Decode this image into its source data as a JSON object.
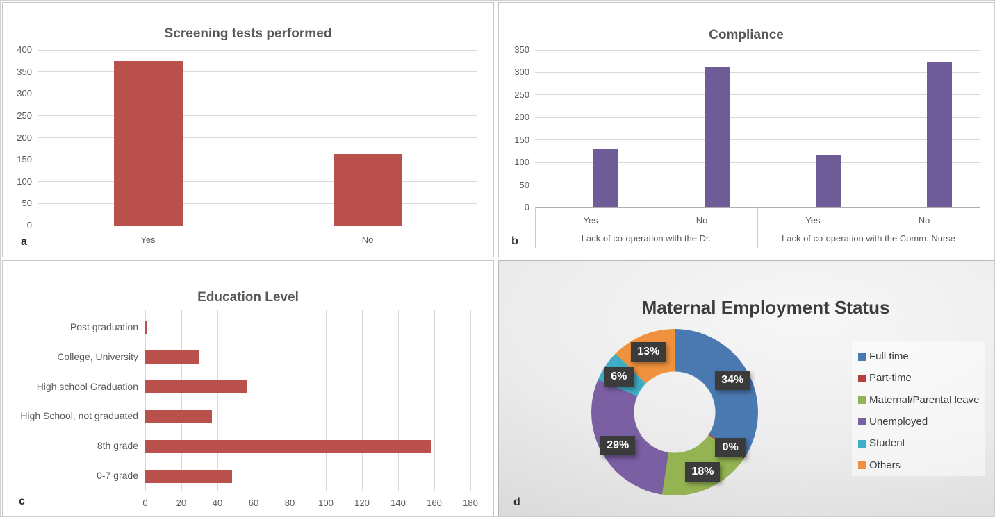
{
  "figure": {
    "description": "Four-panel statistics figure",
    "grid_color": "#d9d9d9",
    "axis_color": "#aeaeae",
    "text_color": "#595959"
  },
  "chart_data": [
    {
      "id": "screening",
      "type": "bar",
      "title": "Screening tests performed",
      "panel_label": "a",
      "categories": [
        "Yes",
        "No"
      ],
      "values": [
        374,
        163
      ],
      "ylim": [
        0,
        400
      ],
      "yticks": [
        0,
        50,
        100,
        150,
        200,
        250,
        300,
        350,
        400
      ],
      "bar_color": "#b9504b",
      "grid": true,
      "legend": false
    },
    {
      "id": "compliance",
      "type": "bar",
      "title": "Compliance",
      "panel_label": "b",
      "categories": [
        "Yes",
        "No",
        "Yes",
        "No"
      ],
      "group_labels": [
        "Lack of co-operation with the Dr.",
        "Lack of co-operation with the Comm. Nurse"
      ],
      "values": [
        129,
        311,
        117,
        322
      ],
      "ylim": [
        0,
        350
      ],
      "yticks": [
        0,
        50,
        100,
        150,
        200,
        250,
        300,
        350
      ],
      "bar_color": "#6e5c98",
      "grid": true,
      "legend": false
    },
    {
      "id": "education",
      "type": "bar-horizontal",
      "title": "Education Level",
      "panel_label": "c",
      "categories": [
        "Post graduation",
        "College, University",
        "High school Graduation",
        "High School, not graduated",
        "8th grade",
        "0-7 grade"
      ],
      "values": [
        1,
        30,
        56,
        37,
        158,
        48
      ],
      "xlim": [
        0,
        180
      ],
      "xticks": [
        0,
        20,
        40,
        60,
        80,
        100,
        120,
        140,
        160,
        180
      ],
      "bar_color": "#b9504b",
      "grid": true,
      "legend": false
    },
    {
      "id": "employment",
      "type": "donut",
      "title": "Maternal Employment Status",
      "panel_label": "d",
      "slices": [
        {
          "label": "Full time",
          "pct": 34,
          "color": "#4a79b2"
        },
        {
          "label": "Part-time",
          "pct": 0,
          "color": "#b6403c"
        },
        {
          "label": "Maternal/Parental leave",
          "pct": 18,
          "color": "#94b352"
        },
        {
          "label": "Unemployed",
          "pct": 29,
          "color": "#7a5fa3"
        },
        {
          "label": "Student",
          "pct": 6,
          "color": "#3fadc5"
        },
        {
          "label": "Others",
          "pct": 13,
          "color": "#f0923d"
        }
      ],
      "data_labels": [
        "34%",
        "0%",
        "18%",
        "29%",
        "6%",
        "13%"
      ],
      "legend_position": "right",
      "label_box_color": "#3b3b3b",
      "label_text_color": "#ffffff"
    }
  ]
}
